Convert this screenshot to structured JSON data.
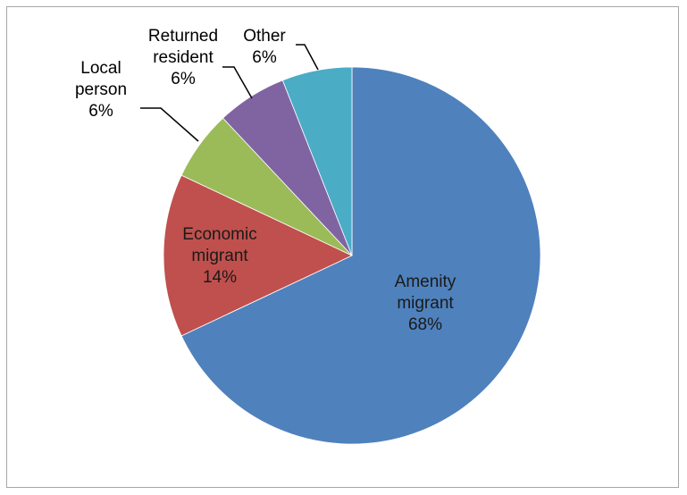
{
  "chart_data": {
    "type": "pie",
    "title": "",
    "slices": [
      {
        "name": "Amenity migrant",
        "value": 68,
        "label_lines": [
          "Amenity",
          "migrant",
          "68%"
        ],
        "color": "#4F81BD"
      },
      {
        "name": "Economic migrant",
        "value": 14,
        "label_lines": [
          "Economic",
          "migrant",
          "14%"
        ],
        "color": "#C0504D"
      },
      {
        "name": "Local person",
        "value": 6,
        "label_lines": [
          "Local",
          "person",
          "6%"
        ],
        "color": "#9BBB59"
      },
      {
        "name": "Returned resident",
        "value": 6,
        "label_lines": [
          "Returned",
          "resident",
          "6%"
        ],
        "color": "#8064A2"
      },
      {
        "name": "Other",
        "value": 6,
        "label_lines": [
          "Other",
          "6%"
        ],
        "color": "#4BACC6"
      }
    ],
    "start_angle_deg": 0,
    "direction": "clockwise",
    "legend": "none",
    "data_labels": "category-and-percent"
  }
}
